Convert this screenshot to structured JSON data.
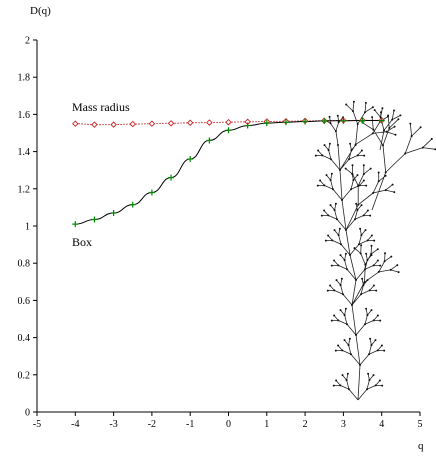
{
  "chart_data": {
    "type": "line",
    "xlabel": "q",
    "ylabel": "D(q)",
    "xlim": [
      -5,
      5
    ],
    "ylim": [
      0,
      2
    ],
    "xticks": [
      "-5",
      "-4",
      "-3",
      "-2",
      "-1",
      "0",
      "1",
      "2",
      "3",
      "4",
      "5"
    ],
    "yticks": [
      "0",
      "0.2",
      "0.4",
      "0.6",
      "0.8",
      "1",
      "1.2",
      "1.4",
      "1.6",
      "1.8",
      "2"
    ],
    "grid": false,
    "series": [
      {
        "name": "Mass radius",
        "marker": "diamond",
        "line": "dotted",
        "color": "#cc2222",
        "x": [
          -4,
          -3.5,
          -3,
          -2.5,
          -2,
          -1.5,
          -1,
          -0.5,
          0,
          0.5,
          1,
          1.5,
          2,
          2.5,
          3,
          3.5,
          4
        ],
        "y": [
          1.55,
          1.545,
          1.545,
          1.548,
          1.55,
          1.552,
          1.555,
          1.556,
          1.558,
          1.56,
          1.562,
          1.563,
          1.565,
          1.566,
          1.567,
          1.568,
          1.568
        ]
      },
      {
        "name": "Box",
        "marker": "plus",
        "line": "solid",
        "color": "#000000",
        "marker_color": "#008800",
        "x": [
          -4,
          -3.5,
          -3,
          -2.5,
          -2,
          -1.5,
          -1,
          -0.5,
          0,
          0.5,
          1,
          1.5,
          2,
          2.5,
          3,
          3.5,
          4
        ],
        "y": [
          1.01,
          1.035,
          1.07,
          1.115,
          1.18,
          1.26,
          1.36,
          1.46,
          1.515,
          1.54,
          1.553,
          1.558,
          1.562,
          1.565,
          1.566,
          1.567,
          1.567
        ]
      }
    ],
    "inset": "fractal-cluster-illustration"
  }
}
